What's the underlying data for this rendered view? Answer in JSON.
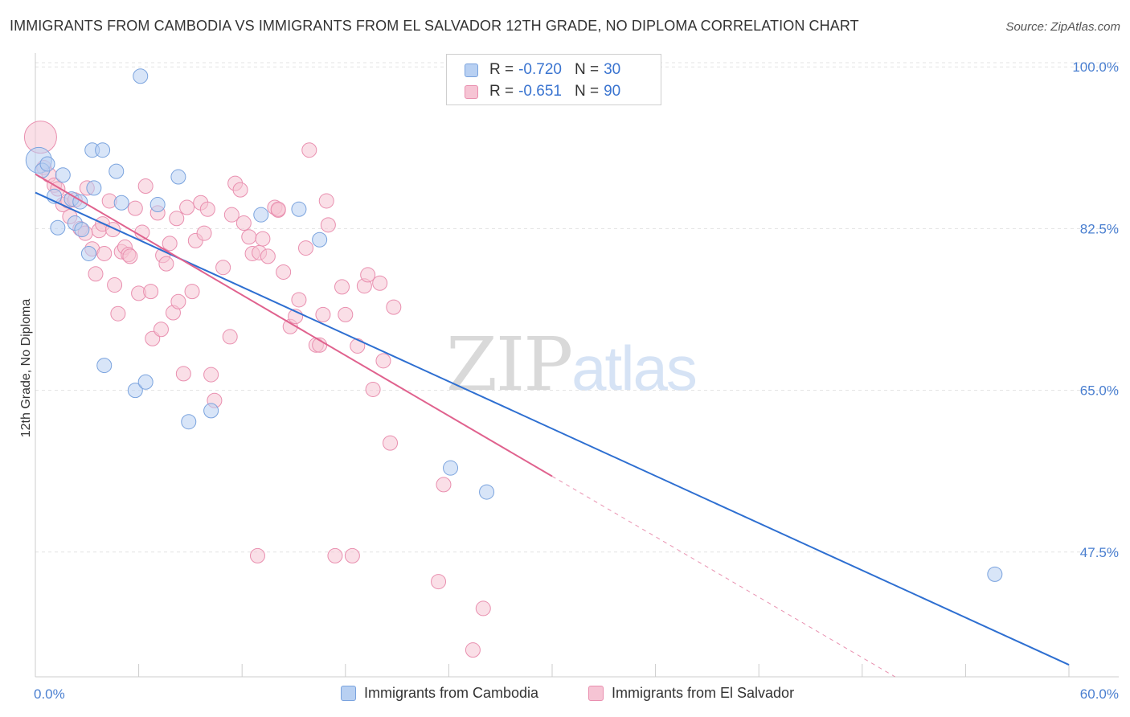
{
  "header": {
    "title": "IMMIGRANTS FROM CAMBODIA VS IMMIGRANTS FROM EL SALVADOR 12TH GRADE, NO DIPLOMA CORRELATION CHART",
    "source": "Source: ZipAtlas.com"
  },
  "watermark": {
    "zip": "ZIP",
    "atlas": "atlas"
  },
  "legend": {
    "rows": [
      {
        "r_label": "R =",
        "r_value": "-0.720",
        "n_label": "N =",
        "n_value": "30"
      },
      {
        "r_label": "R =",
        "r_value": "-0.651",
        "n_label": "N =",
        "n_value": "90"
      }
    ]
  },
  "colors": {
    "cambodia_fill": "#b8d0f2",
    "cambodia_stroke": "#7aa3de",
    "cambodia_line": "#2e6fd1",
    "elsalvador_fill": "#f6c4d4",
    "elsalvador_stroke": "#e98faf",
    "elsalvador_line": "#e0628e",
    "grid": "#e3e3e3",
    "tick_text": "#4a7fd0"
  },
  "chart_data": {
    "type": "scatter",
    "title": "IMMIGRANTS FROM CAMBODIA VS IMMIGRANTS FROM EL SALVADOR 12TH GRADE, NO DIPLOMA CORRELATION CHART",
    "xlabel": "",
    "ylabel": "12th Grade, No Diploma",
    "xlim": [
      0,
      60
    ],
    "ylim": [
      34,
      101.5
    ],
    "x_tick_labels": [
      "0.0%",
      "60.0%"
    ],
    "y_ticks": [
      47.5,
      65.0,
      82.5,
      100.0
    ],
    "y_tick_labels": [
      "47.5%",
      "65.0%",
      "82.5%",
      "100.0%"
    ],
    "grid": true,
    "legend_position": "bottom",
    "series": [
      {
        "name": "Immigrants from Cambodia",
        "points": [
          [
            0.2,
            89.9
          ],
          [
            0.4,
            88.8
          ],
          [
            0.7,
            89.5
          ],
          [
            1.1,
            86.0
          ],
          [
            1.3,
            82.6
          ],
          [
            1.6,
            88.3
          ],
          [
            2.1,
            85.7
          ],
          [
            2.3,
            83.1
          ],
          [
            2.6,
            85.4
          ],
          [
            2.7,
            82.4
          ],
          [
            3.1,
            79.8
          ],
          [
            3.4,
            86.9
          ],
          [
            3.3,
            91.0
          ],
          [
            3.9,
            91.0
          ],
          [
            4.7,
            88.7
          ],
          [
            5.0,
            85.3
          ],
          [
            5.8,
            65.0
          ],
          [
            6.1,
            99.0
          ],
          [
            6.4,
            65.9
          ],
          [
            7.1,
            85.1
          ],
          [
            8.3,
            88.1
          ],
          [
            8.9,
            61.6
          ],
          [
            10.2,
            62.8
          ],
          [
            13.1,
            84.0
          ],
          [
            15.3,
            84.6
          ],
          [
            16.5,
            81.3
          ],
          [
            4.0,
            67.7
          ],
          [
            24.1,
            56.6
          ],
          [
            26.2,
            54.0
          ],
          [
            55.7,
            45.1
          ]
        ],
        "trendline": {
          "x": [
            0,
            60
          ],
          "y": [
            86.4,
            35.3
          ]
        }
      },
      {
        "name": "Immigrants from El Salvador",
        "points": [
          [
            0.3,
            92.4
          ],
          [
            0.5,
            89.1
          ],
          [
            0.8,
            88.3
          ],
          [
            1.1,
            87.2
          ],
          [
            1.3,
            86.8
          ],
          [
            1.6,
            85.1
          ],
          [
            1.9,
            85.5
          ],
          [
            2.0,
            83.8
          ],
          [
            2.3,
            85.6
          ],
          [
            2.6,
            82.5
          ],
          [
            2.9,
            82.0
          ],
          [
            3.0,
            86.9
          ],
          [
            3.3,
            80.3
          ],
          [
            3.5,
            77.6
          ],
          [
            3.7,
            82.3
          ],
          [
            3.9,
            83.0
          ],
          [
            4.0,
            79.8
          ],
          [
            4.3,
            85.5
          ],
          [
            4.5,
            82.4
          ],
          [
            4.6,
            76.4
          ],
          [
            4.8,
            73.3
          ],
          [
            5.0,
            80.0
          ],
          [
            5.2,
            80.5
          ],
          [
            5.4,
            79.7
          ],
          [
            5.8,
            84.7
          ],
          [
            6.0,
            75.5
          ],
          [
            6.2,
            82.1
          ],
          [
            6.4,
            87.1
          ],
          [
            6.7,
            75.7
          ],
          [
            6.8,
            70.6
          ],
          [
            7.1,
            84.2
          ],
          [
            7.3,
            71.6
          ],
          [
            7.4,
            79.6
          ],
          [
            7.6,
            78.7
          ],
          [
            7.8,
            80.9
          ],
          [
            8.0,
            73.4
          ],
          [
            8.2,
            83.6
          ],
          [
            8.3,
            74.6
          ],
          [
            8.6,
            66.8
          ],
          [
            8.8,
            84.8
          ],
          [
            9.1,
            75.7
          ],
          [
            9.3,
            81.2
          ],
          [
            9.6,
            85.3
          ],
          [
            9.8,
            82.0
          ],
          [
            10.0,
            84.6
          ],
          [
            10.2,
            66.7
          ],
          [
            10.4,
            63.9
          ],
          [
            10.9,
            78.3
          ],
          [
            11.3,
            70.8
          ],
          [
            11.4,
            84.0
          ],
          [
            11.6,
            87.4
          ],
          [
            11.9,
            86.7
          ],
          [
            12.1,
            83.1
          ],
          [
            12.4,
            81.6
          ],
          [
            12.6,
            79.8
          ],
          [
            13.0,
            79.9
          ],
          [
            13.2,
            81.4
          ],
          [
            13.5,
            79.5
          ],
          [
            13.9,
            84.8
          ],
          [
            14.1,
            84.5
          ],
          [
            14.4,
            77.8
          ],
          [
            14.8,
            71.9
          ],
          [
            15.1,
            73.0
          ],
          [
            15.3,
            74.8
          ],
          [
            15.7,
            80.4
          ],
          [
            15.9,
            91.0
          ],
          [
            16.3,
            69.9
          ],
          [
            16.7,
            73.2
          ],
          [
            16.9,
            85.5
          ],
          [
            17.0,
            82.9
          ],
          [
            17.4,
            47.1
          ],
          [
            17.8,
            76.2
          ],
          [
            18.0,
            73.2
          ],
          [
            18.4,
            47.1
          ],
          [
            18.7,
            69.8
          ],
          [
            19.1,
            76.3
          ],
          [
            19.3,
            77.5
          ],
          [
            19.6,
            65.1
          ],
          [
            20.0,
            76.6
          ],
          [
            20.2,
            68.2
          ],
          [
            20.6,
            59.3
          ],
          [
            20.8,
            74.0
          ],
          [
            23.7,
            54.8
          ],
          [
            14.1,
            84.6
          ],
          [
            23.4,
            44.3
          ],
          [
            26.0,
            41.4
          ],
          [
            25.4,
            36.9
          ],
          [
            12.9,
            47.1
          ],
          [
            5.5,
            79.5
          ],
          [
            16.5,
            69.9
          ]
        ],
        "trendline": {
          "x": [
            0,
            30
          ],
          "y": [
            88.4,
            55.7
          ]
        },
        "trendline_extension": {
          "x": [
            30,
            60
          ],
          "y": [
            55.7,
            23.0
          ]
        }
      }
    ]
  },
  "bottom_legend": {
    "items": [
      {
        "label": "Immigrants from Cambodia"
      },
      {
        "label": "Immigrants from El Salvador"
      }
    ]
  },
  "axes": {
    "x_left_label": "0.0%",
    "x_right_label": "60.0%",
    "y_title": "12th Grade, No Diploma"
  }
}
